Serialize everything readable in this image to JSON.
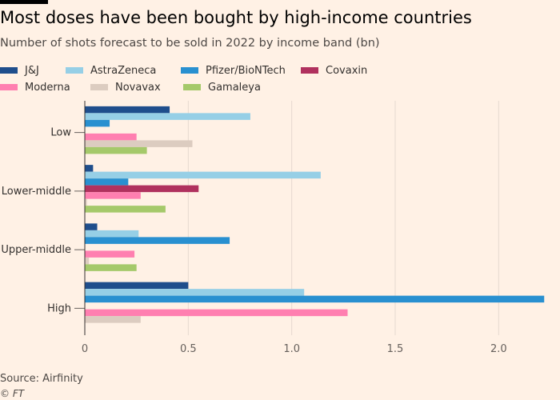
{
  "header": {
    "title": "Most doses have been bought by high-income countries",
    "subtitle": "Number of shots forecast to be sold in 2022 by income band (bn)"
  },
  "footer": {
    "source": "Source: Airfinity",
    "credit": "© FT"
  },
  "chart_data": {
    "type": "bar",
    "orientation": "horizontal",
    "categories": [
      "Low",
      "Lower-middle",
      "Upper-middle",
      "High"
    ],
    "series": [
      {
        "name": "J&J",
        "color": "#1f4e8c",
        "values": [
          0.41,
          0.04,
          0.06,
          0.5
        ]
      },
      {
        "name": "AstraZeneca",
        "color": "#96cfe6",
        "values": [
          0.8,
          1.14,
          0.26,
          1.06
        ]
      },
      {
        "name": "Pfizer/BioNTech",
        "color": "#2990d0",
        "values": [
          0.12,
          0.21,
          0.7,
          2.22
        ]
      },
      {
        "name": "Covaxin",
        "color": "#b0315e",
        "values": [
          0.0,
          0.55,
          0.0,
          0.0
        ]
      },
      {
        "name": "Moderna",
        "color": "#ff7fb0",
        "values": [
          0.25,
          0.27,
          0.24,
          1.27
        ]
      },
      {
        "name": "Novavax",
        "color": "#dcccc0",
        "values": [
          0.52,
          0.01,
          0.02,
          0.27
        ]
      },
      {
        "name": "Gamaleya",
        "color": "#a5c96a",
        "values": [
          0.3,
          0.39,
          0.25,
          0.0
        ]
      }
    ],
    "xlim": [
      0,
      2.25
    ],
    "xticks": [
      0,
      0.5,
      1.0,
      1.5,
      2.0
    ],
    "xtick_labels": [
      "0",
      "0.5",
      "1.0",
      "1.5",
      "2.0"
    ],
    "xlabel": "",
    "ylabel": "",
    "grid": "vertical",
    "legend": "top"
  }
}
